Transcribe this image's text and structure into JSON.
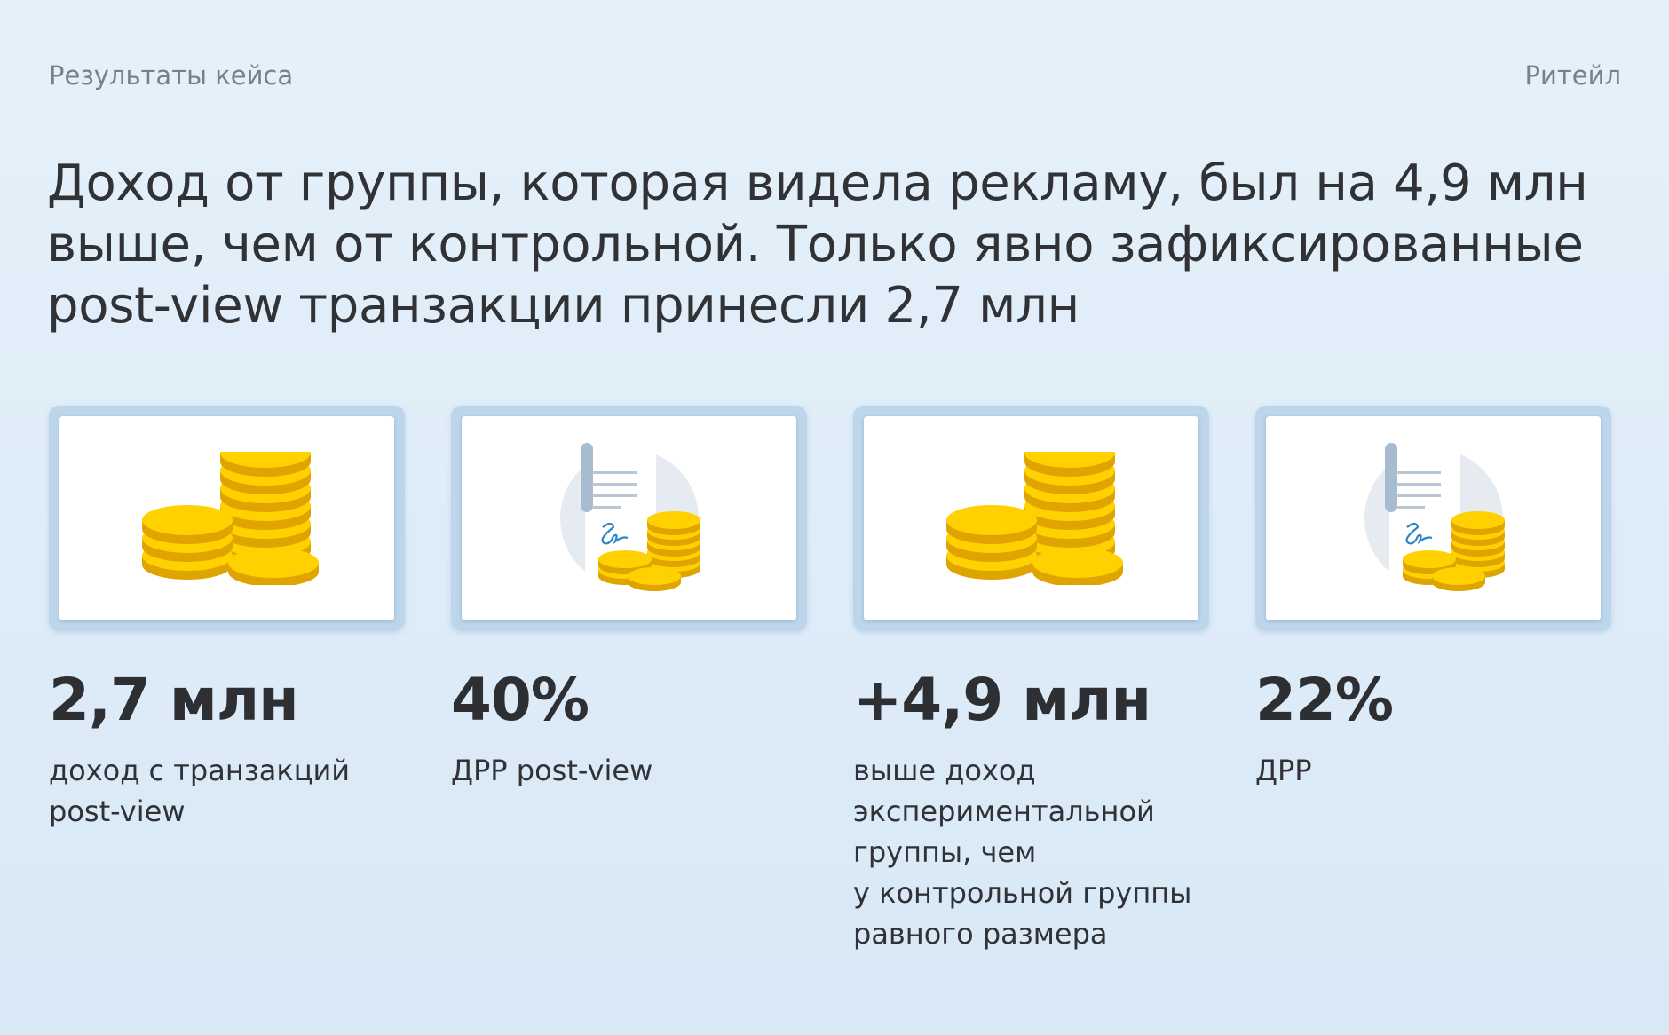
{
  "header": {
    "section": "Результаты кейса",
    "category": "Ритейл"
  },
  "headline": {
    "line1": "Доход от группы, которая видела рекламу, был на 4,9 млн",
    "line2": "выше, чем от контрольной. Только явно зафиксированные",
    "line3": "post-view транзакции принесли 2,7 млн"
  },
  "cards": [
    {
      "icon": "coins-stack-icon",
      "value": "2,7 млн",
      "desc_lines": [
        "доход с транзакций",
        "post-view"
      ]
    },
    {
      "icon": "document-coins-icon",
      "value": "40%",
      "desc_lines": [
        "ДРР post-view"
      ]
    },
    {
      "icon": "coins-stack-icon",
      "value": "+4,9 млн",
      "desc_lines": [
        "выше доход",
        "экспериментальной",
        "группы, чем",
        "у контрольной группы",
        "равного размера"
      ]
    },
    {
      "icon": "document-coins-icon",
      "value": "22%",
      "desc_lines": [
        "ДРР"
      ]
    }
  ],
  "colors": {
    "background": "#e2eef8",
    "coin_gold": "#f7c600",
    "coin_shade": "#e2a900",
    "card_frame": "#bdd6ec"
  }
}
